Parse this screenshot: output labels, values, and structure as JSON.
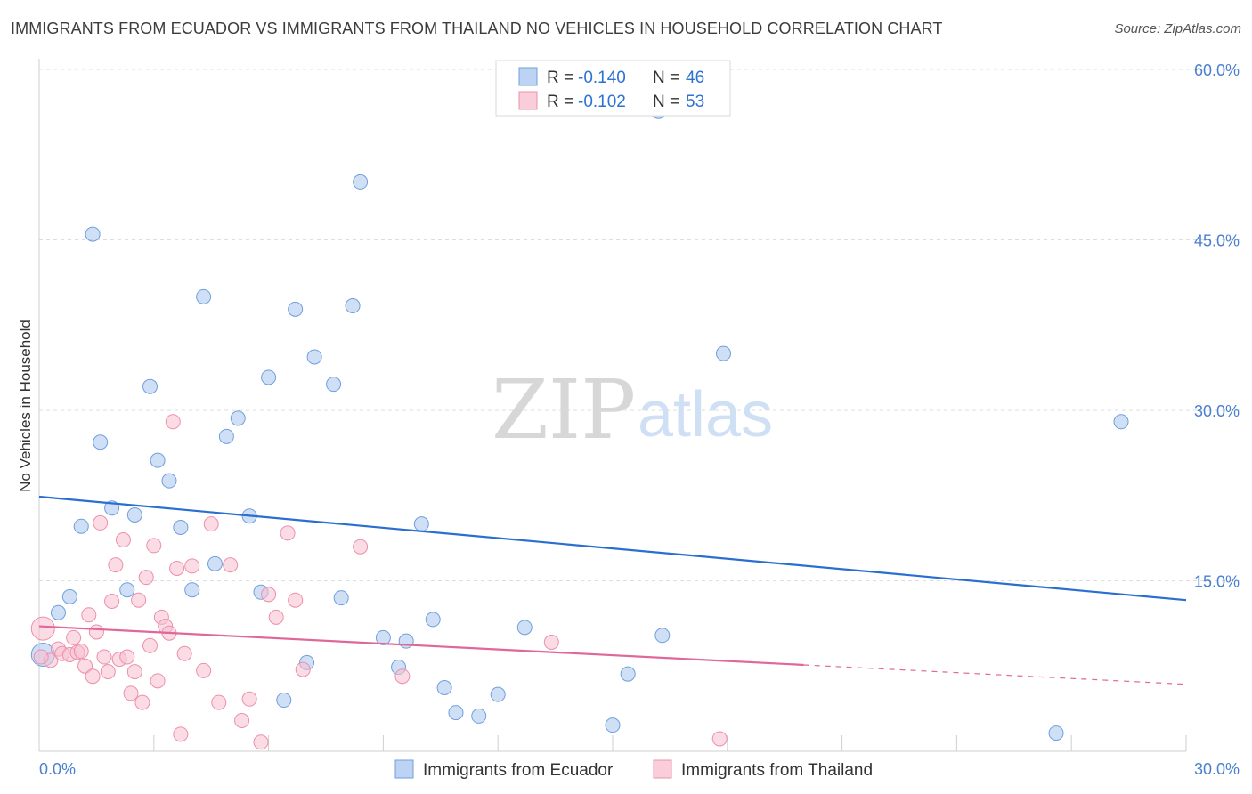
{
  "title": "IMMIGRANTS FROM ECUADOR VS IMMIGRANTS FROM THAILAND NO VEHICLES IN HOUSEHOLD CORRELATION CHART",
  "source": "Source: ZipAtlas.com",
  "watermark": {
    "zip": "ZIP",
    "atlas": "atlas"
  },
  "legend": {
    "rows": [
      {
        "r_label": "R =",
        "r_value": "-0.140",
        "n_label": "N =",
        "n_value": "46"
      },
      {
        "r_label": "R =",
        "r_value": "-0.102",
        "n_label": "N =",
        "n_value": "53"
      }
    ]
  },
  "chart_data": {
    "type": "scatter",
    "ylabel": "No Vehicles in Household",
    "xlabel": "",
    "xlim": [
      0,
      30
    ],
    "ylim": [
      0,
      60
    ],
    "x_tick_labels": [
      "0.0%",
      "30.0%"
    ],
    "y_tick_labels": [
      "15.0%",
      "30.0%",
      "45.0%",
      "60.0%"
    ],
    "y_ticks": [
      15,
      30,
      45,
      60
    ],
    "grid": true,
    "legend_position": "top-center",
    "series": [
      {
        "name": "Immigrants from Ecuador",
        "color": "#a8c6ef",
        "edge": "#6f9fdc",
        "line_color": "#2a6fd0",
        "trend": {
          "x0": 0,
          "y0": 22.4,
          "x1": 30,
          "y1": 13.3
        },
        "points": [
          [
            0.1,
            8.5
          ],
          [
            0.5,
            12.2
          ],
          [
            0.8,
            13.6
          ],
          [
            1.1,
            19.8
          ],
          [
            1.4,
            45.5
          ],
          [
            1.6,
            27.2
          ],
          [
            1.9,
            21.4
          ],
          [
            2.3,
            14.2
          ],
          [
            2.5,
            20.8
          ],
          [
            2.9,
            32.1
          ],
          [
            3.1,
            25.6
          ],
          [
            3.4,
            23.8
          ],
          [
            3.7,
            19.7
          ],
          [
            4.0,
            14.2
          ],
          [
            4.3,
            40.0
          ],
          [
            4.6,
            16.5
          ],
          [
            4.9,
            27.7
          ],
          [
            5.2,
            29.3
          ],
          [
            5.5,
            20.7
          ],
          [
            5.8,
            14.0
          ],
          [
            6.0,
            32.9
          ],
          [
            6.4,
            4.5
          ],
          [
            6.7,
            38.9
          ],
          [
            7.0,
            7.8
          ],
          [
            7.2,
            34.7
          ],
          [
            7.7,
            32.3
          ],
          [
            7.9,
            13.5
          ],
          [
            8.2,
            39.2
          ],
          [
            8.4,
            50.1
          ],
          [
            9.0,
            10.0
          ],
          [
            9.4,
            7.4
          ],
          [
            9.6,
            9.7
          ],
          [
            10.0,
            20.0
          ],
          [
            10.3,
            11.6
          ],
          [
            10.6,
            5.6
          ],
          [
            10.9,
            3.4
          ],
          [
            11.5,
            3.1
          ],
          [
            12.0,
            5.0
          ],
          [
            12.7,
            10.9
          ],
          [
            15.0,
            2.3
          ],
          [
            15.4,
            6.8
          ],
          [
            16.2,
            56.3
          ],
          [
            16.3,
            10.2
          ],
          [
            17.9,
            35.0
          ],
          [
            26.6,
            1.6
          ],
          [
            28.3,
            29.0
          ]
        ]
      },
      {
        "name": "Immigrants from Thailand",
        "color": "#f7bfd0",
        "edge": "#ec8fac",
        "line_color": "#e0679a",
        "trend": {
          "x0": 0,
          "y0": 11.0,
          "x1": 20,
          "y1": 7.6
        },
        "trend_dashed": {
          "x0": 20,
          "y0": 7.6,
          "x1": 30,
          "y1": 5.9
        },
        "points": [
          [
            0.1,
            10.8
          ],
          [
            0.3,
            8.0
          ],
          [
            0.5,
            9.0
          ],
          [
            0.6,
            8.6
          ],
          [
            0.8,
            8.5
          ],
          [
            0.9,
            10.0
          ],
          [
            1.0,
            8.7
          ],
          [
            1.1,
            8.8
          ],
          [
            1.2,
            7.5
          ],
          [
            1.3,
            12.0
          ],
          [
            1.4,
            6.6
          ],
          [
            1.5,
            10.5
          ],
          [
            1.6,
            20.1
          ],
          [
            1.7,
            8.3
          ],
          [
            1.8,
            7.0
          ],
          [
            1.9,
            13.2
          ],
          [
            2.0,
            16.4
          ],
          [
            2.1,
            8.1
          ],
          [
            2.2,
            18.6
          ],
          [
            2.3,
            8.3
          ],
          [
            2.4,
            5.1
          ],
          [
            2.5,
            7.0
          ],
          [
            2.6,
            13.3
          ],
          [
            2.7,
            4.3
          ],
          [
            2.8,
            15.3
          ],
          [
            2.9,
            9.3
          ],
          [
            3.0,
            18.1
          ],
          [
            3.1,
            6.2
          ],
          [
            3.2,
            11.8
          ],
          [
            3.3,
            11.0
          ],
          [
            3.4,
            10.4
          ],
          [
            3.5,
            29.0
          ],
          [
            3.6,
            16.1
          ],
          [
            3.7,
            1.5
          ],
          [
            3.8,
            8.6
          ],
          [
            4.0,
            16.3
          ],
          [
            4.3,
            7.1
          ],
          [
            4.5,
            20.0
          ],
          [
            4.7,
            4.3
          ],
          [
            5.0,
            16.4
          ],
          [
            5.3,
            2.7
          ],
          [
            5.5,
            4.6
          ],
          [
            5.8,
            0.8
          ],
          [
            6.0,
            13.8
          ],
          [
            6.2,
            11.8
          ],
          [
            6.5,
            19.2
          ],
          [
            6.7,
            13.3
          ],
          [
            6.9,
            7.2
          ],
          [
            8.4,
            18.0
          ],
          [
            9.5,
            6.6
          ],
          [
            13.4,
            9.6
          ],
          [
            17.8,
            1.1
          ],
          [
            0.05,
            8.3
          ]
        ]
      }
    ]
  },
  "bottom_legend": [
    "Immigrants from Ecuador",
    "Immigrants from Thailand"
  ]
}
